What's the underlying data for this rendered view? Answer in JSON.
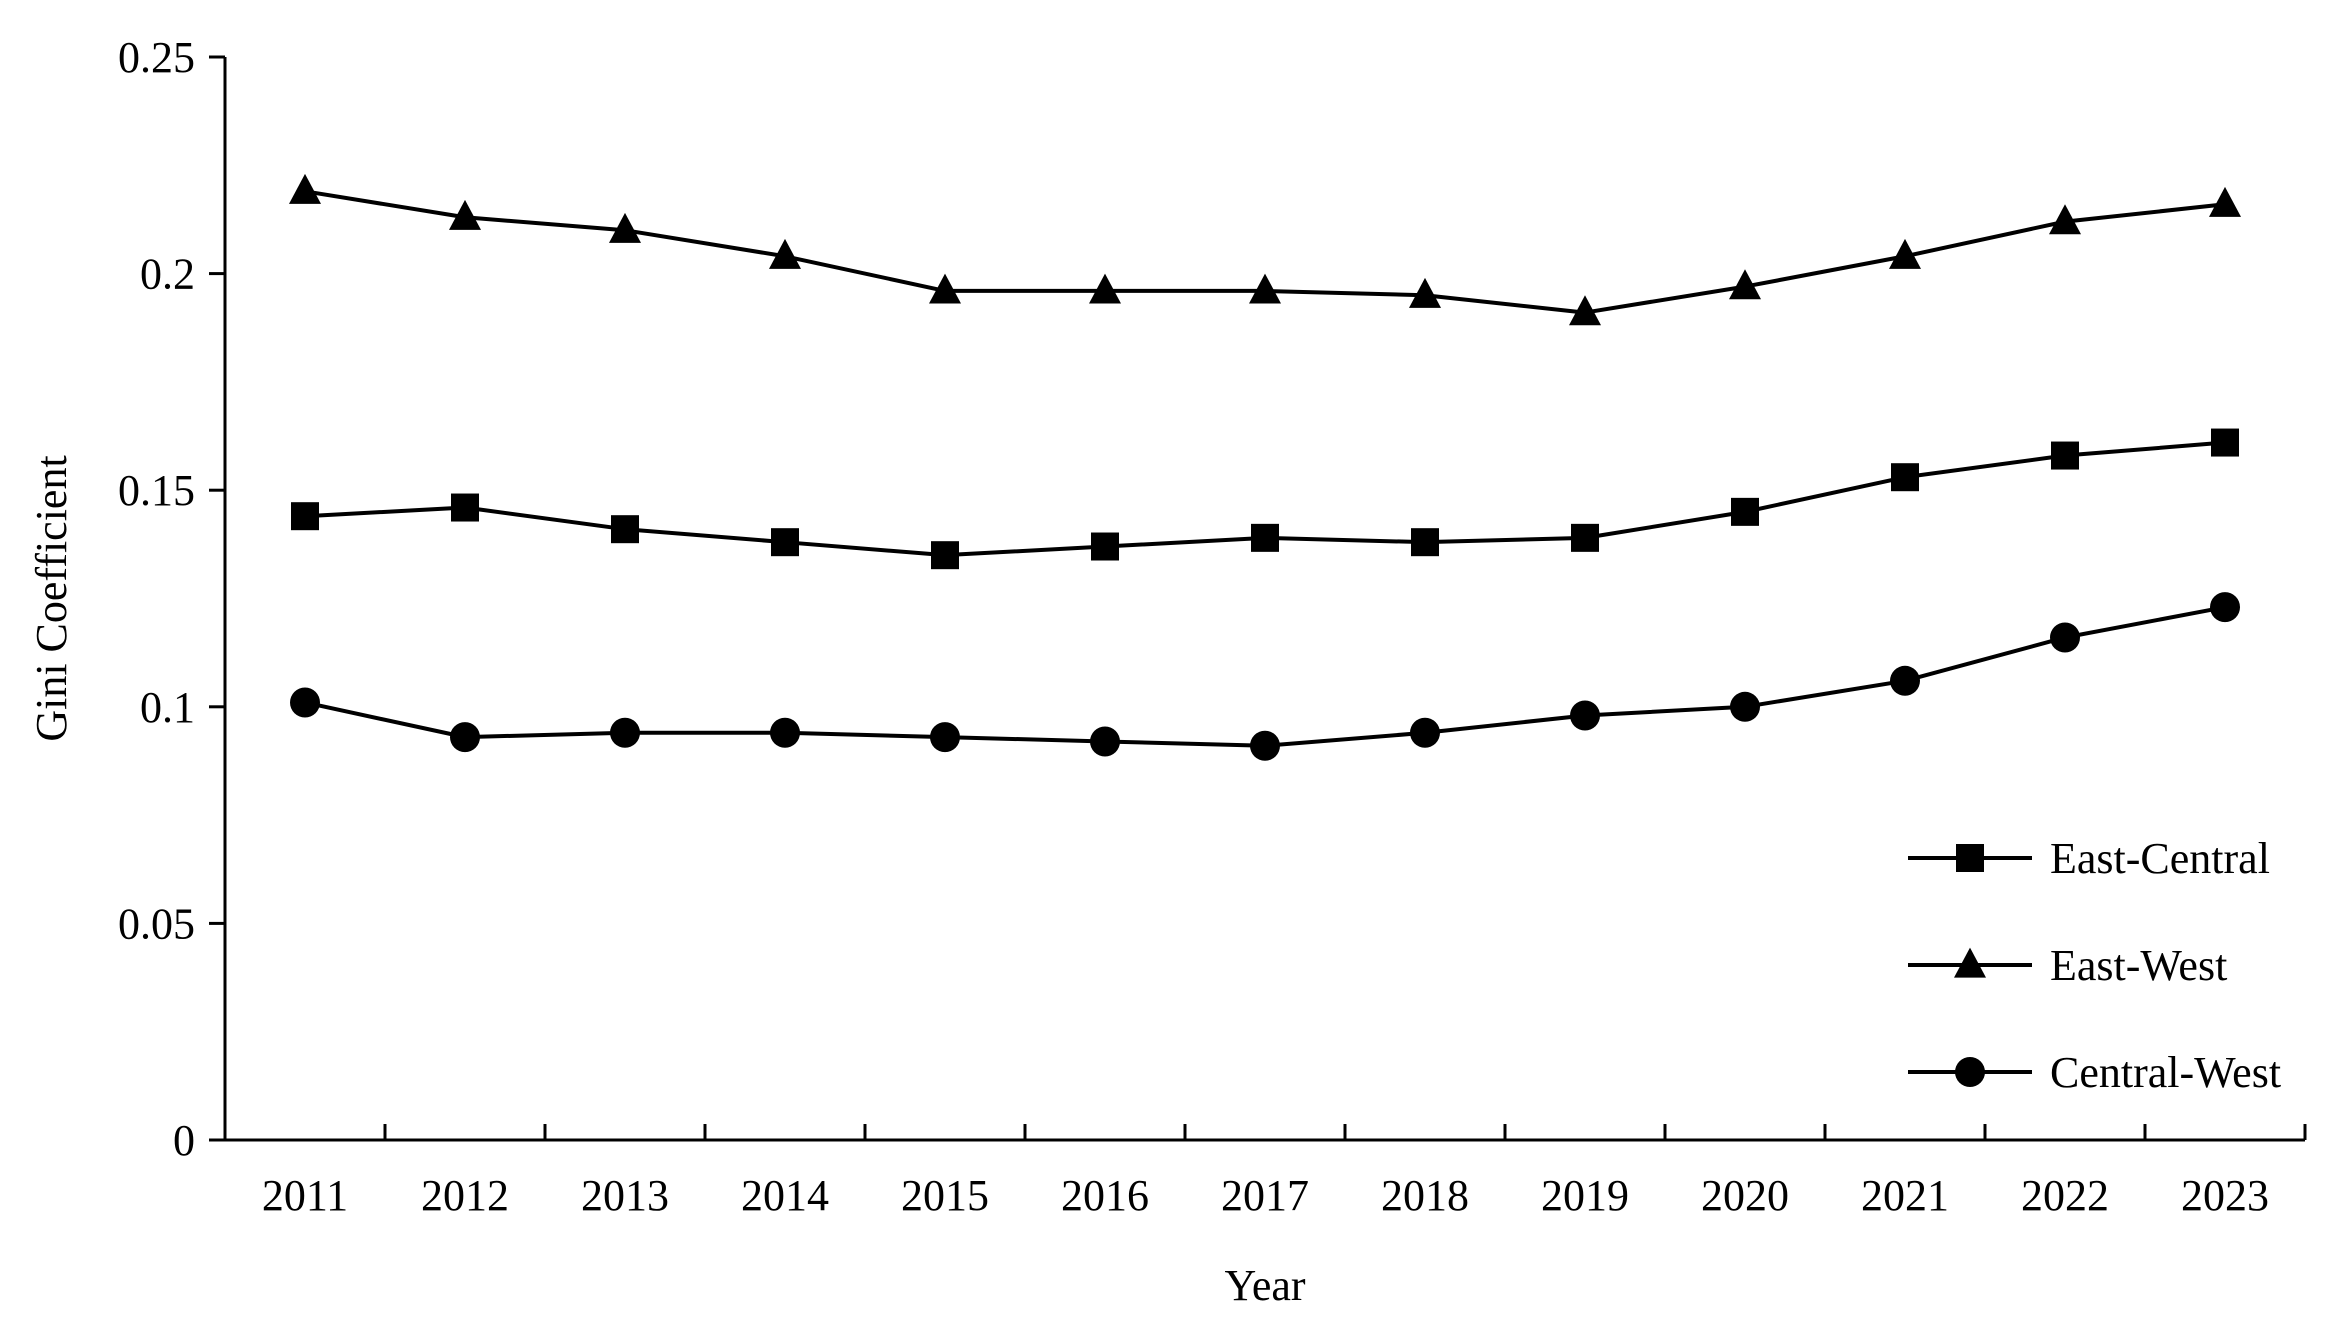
{
  "chart_data": {
    "type": "line",
    "title": "",
    "xlabel": "Year",
    "ylabel": "Gini Coefficient",
    "x": [
      "2011",
      "2012",
      "2013",
      "2014",
      "2015",
      "2016",
      "2017",
      "2018",
      "2019",
      "2020",
      "2021",
      "2022",
      "2023"
    ],
    "ylim": [
      0,
      0.25
    ],
    "y_ticks": [
      "0",
      "0.05",
      "0.1",
      "0.15",
      "0.2",
      "0.25"
    ],
    "grid": false,
    "legend_position": "bottom-right",
    "series": [
      {
        "name": "East-Central",
        "marker": "square",
        "values": [
          0.144,
          0.146,
          0.141,
          0.138,
          0.135,
          0.137,
          0.139,
          0.138,
          0.139,
          0.145,
          0.153,
          0.158,
          0.161
        ]
      },
      {
        "name": "East-West",
        "marker": "triangle",
        "values": [
          0.219,
          0.213,
          0.21,
          0.204,
          0.196,
          0.196,
          0.196,
          0.195,
          0.191,
          0.197,
          0.204,
          0.212,
          0.216
        ]
      },
      {
        "name": "Central-West",
        "marker": "circle",
        "values": [
          0.101,
          0.093,
          0.094,
          0.094,
          0.093,
          0.092,
          0.091,
          0.094,
          0.098,
          0.1,
          0.106,
          0.116,
          0.123
        ]
      }
    ],
    "colors": {
      "line": "#000000",
      "background": "#ffffff"
    }
  }
}
